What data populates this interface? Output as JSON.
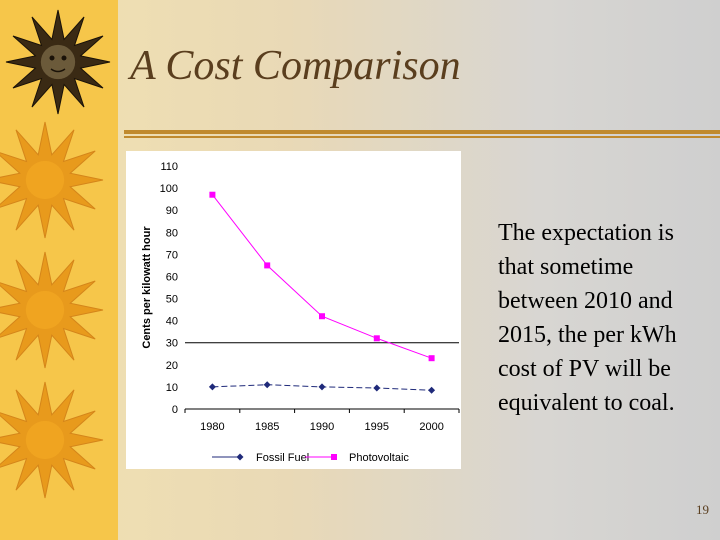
{
  "slide": {
    "title": "A Cost Comparison",
    "body": "The expectation is that sometime between 2010 and 2015, the per kWh cost of PV will be equivalent to coal.",
    "page_number": "19",
    "accent_color": "#c08a2e",
    "decoration": "sun-icon"
  },
  "chart_data": {
    "type": "line",
    "title": "",
    "xlabel": "",
    "ylabel": "Cents per kilowatt hour",
    "categories": [
      "1980",
      "1985",
      "1990",
      "1995",
      "2000"
    ],
    "y_ticks": [
      0,
      10,
      20,
      30,
      40,
      50,
      60,
      70,
      80,
      90,
      100,
      110
    ],
    "ylim": [
      0,
      110
    ],
    "grid": false,
    "legend_position": "bottom",
    "reference_line": 30,
    "series": [
      {
        "name": "Fossil Fuel",
        "color": "#1f2a7a",
        "marker": "diamond",
        "values": [
          10,
          11,
          10,
          9.5,
          8.5
        ]
      },
      {
        "name": "Photovoltaic",
        "color": "#ff00ff",
        "marker": "square",
        "values": [
          97,
          65,
          42,
          32,
          23
        ]
      }
    ]
  }
}
